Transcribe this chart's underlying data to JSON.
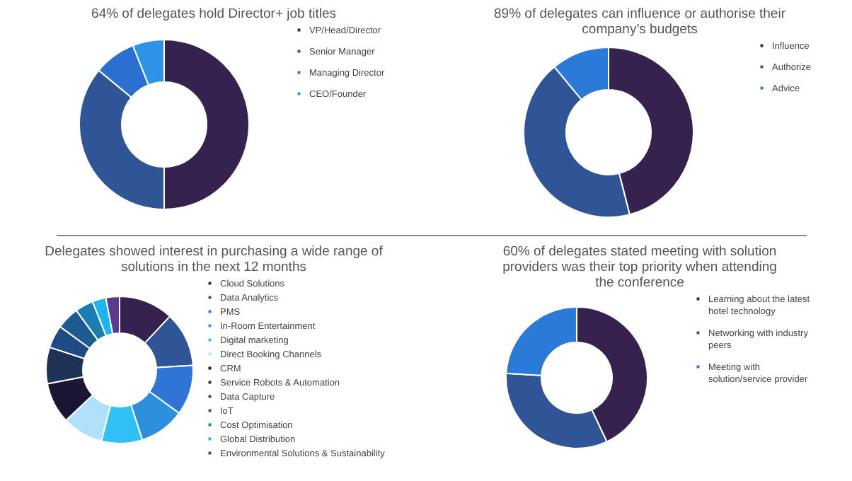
{
  "chart_data": [
    {
      "type": "donut",
      "title": "64% of delegates hold Director+ job titles",
      "categories": [
        "VP/Head/Director",
        "Senior Manager",
        "Managing Director",
        "CEO/Founder"
      ],
      "values": [
        50,
        36,
        8,
        6
      ],
      "colors": [
        "#35224f",
        "#2f5597",
        "#2b6fd0",
        "#2e93e6"
      ],
      "legend": "right"
    },
    {
      "type": "donut",
      "title": "89% of delegates can influence or authorise their company’s budgets",
      "categories": [
        "Influence",
        "Authorize",
        "Advice"
      ],
      "values": [
        46,
        43,
        11
      ],
      "colors": [
        "#35224f",
        "#2f5597",
        "#2b7ad8"
      ],
      "legend": "right"
    },
    {
      "type": "donut",
      "title": "Delegates showed interest in purchasing a wide range of solutions in the next 12 months",
      "categories": [
        "Cloud Solutions",
        "Data Analytics",
        "PMS",
        "In-Room Entertainment",
        "Digital marketing",
        "Direct Booking Channels",
        "CRM",
        "Service Robots & Automation",
        "Data Capture",
        "IoT",
        "Cost Optimisation",
        "Global Distribution",
        "Environmental Solutions & Sustainability"
      ],
      "values": [
        12,
        12,
        11,
        10,
        9,
        9,
        9,
        8,
        5,
        5,
        4,
        3,
        3
      ],
      "colors": [
        "#35224f",
        "#2f5597",
        "#2e75d6",
        "#2e8fde",
        "#2fc0f5",
        "#b0e0fa",
        "#1d1535",
        "#1e3256",
        "#1f4a84",
        "#1d5a92",
        "#1a7cb0",
        "#1fb4ef",
        "#5b3a8f"
      ],
      "legend": "right"
    },
    {
      "type": "donut",
      "title": "60% of delegates stated meeting with solution providers was their top priority when attending the conference",
      "categories": [
        "Learning about the latest hotel technology",
        "Networking with industry peers",
        "Meeting with solution/service provider"
      ],
      "values": [
        43,
        33,
        24
      ],
      "colors": [
        "#35224f",
        "#2f5597",
        "#2b7ad8"
      ],
      "legend": "right"
    }
  ]
}
